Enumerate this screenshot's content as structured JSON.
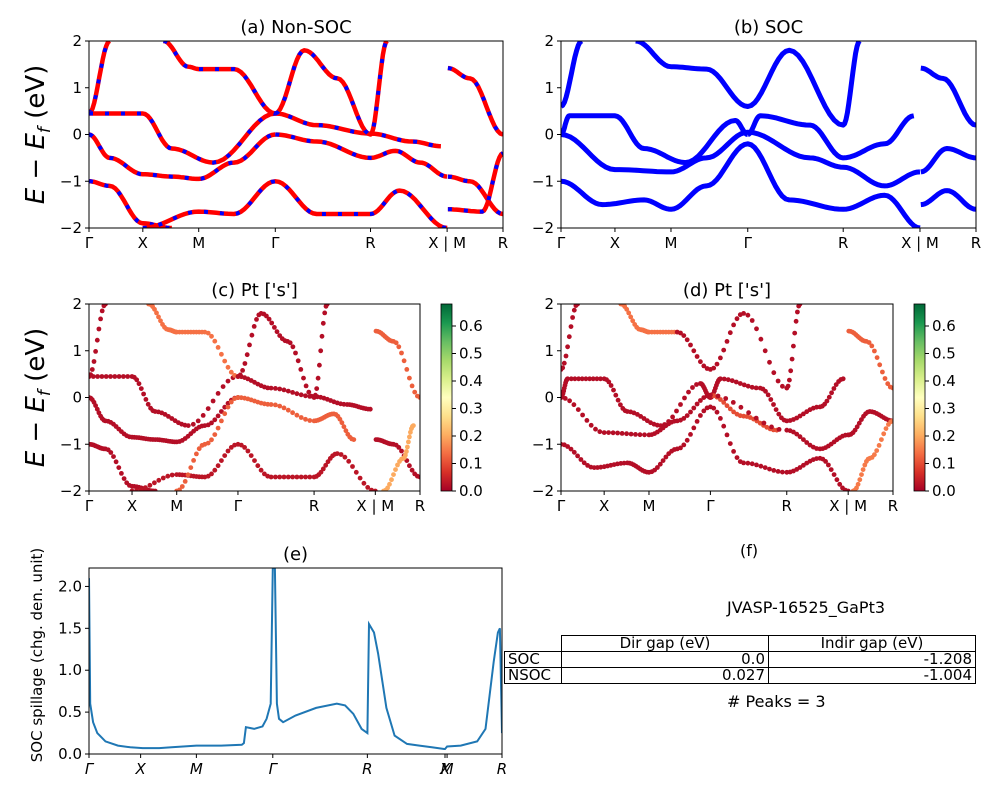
{
  "chart_data": [
    {
      "id": "a",
      "type": "line",
      "title": "(a) Non-SOC",
      "ylabel": "E − E_f (eV)",
      "ylim": [
        -2,
        2
      ],
      "yticks": [
        "2",
        "1",
        "0",
        "−1",
        "−2"
      ],
      "kpoint_labels": [
        "Γ",
        "X",
        "M",
        "Γ",
        "R",
        "X | M",
        "R"
      ],
      "kpoint_positions": [
        0,
        0.13,
        0.265,
        0.45,
        0.68,
        0.865,
        1.0
      ],
      "style": "red solid with blue dashed overlay",
      "colors": {
        "primary": "#ff0000",
        "overlay": "#0000ff"
      },
      "series": [
        {
          "name": "band1",
          "x": [
            0,
            0.05
          ],
          "y": [
            0.45,
            2.0
          ]
        },
        {
          "name": "band2",
          "x": [
            0,
            0.13,
            0.2,
            0.3,
            0.45,
            0.55,
            0.68,
            0.78,
            0.85
          ],
          "y": [
            0.45,
            0.45,
            -0.3,
            -0.6,
            0.45,
            0.2,
            0.02,
            -0.15,
            -0.25
          ]
        },
        {
          "name": "band3",
          "x": [
            0,
            0.05,
            0.13,
            0.2,
            0.265,
            0.35,
            0.45
          ],
          "y": [
            0,
            -0.5,
            -0.85,
            -0.9,
            -0.95,
            -0.6,
            0.0
          ]
        },
        {
          "name": "band4",
          "x": [
            0.45,
            0.55,
            0.68,
            0.74,
            0.8,
            0.865
          ],
          "y": [
            0.0,
            -0.15,
            -0.5,
            -0.35,
            -0.6,
            -0.9
          ]
        },
        {
          "name": "band5",
          "x": [
            0.18,
            0.24,
            0.265,
            0.35,
            0.45
          ],
          "y": [
            2.0,
            1.45,
            1.4,
            1.4,
            0.45
          ]
        },
        {
          "name": "band6",
          "x": [
            0.45,
            0.52,
            0.6,
            0.68,
            0.72
          ],
          "y": [
            0.45,
            1.8,
            1.2,
            0.0,
            2.0
          ]
        },
        {
          "name": "band7",
          "x": [
            0,
            0.05,
            0.13,
            0.2
          ],
          "y": [
            -1.0,
            -1.1,
            -1.9,
            -2.0
          ]
        },
        {
          "name": "band8",
          "x": [
            0.13,
            0.265,
            0.35,
            0.45,
            0.55,
            0.68,
            0.75,
            0.865
          ],
          "y": [
            -2.0,
            -1.65,
            -1.7,
            -1.0,
            -1.7,
            -1.7,
            -1.2,
            -2.0
          ]
        },
        {
          "name": "band9",
          "x": [
            0.867,
            0.92,
            1.0
          ],
          "y": [
            1.42,
            1.2,
            0.0
          ]
        },
        {
          "name": "band10",
          "x": [
            0.867,
            0.92,
            1.0
          ],
          "y": [
            -0.9,
            -1.0,
            -1.7
          ]
        },
        {
          "name": "band11",
          "x": [
            0.867,
            0.95,
            1.0
          ],
          "y": [
            -1.6,
            -1.65,
            -0.4
          ]
        }
      ]
    },
    {
      "id": "b",
      "type": "line",
      "title": "(b) SOC",
      "ylim": [
        -2,
        2
      ],
      "yticks": [
        "2",
        "1",
        "0",
        "−1",
        "−2"
      ],
      "kpoint_labels": [
        "Γ",
        "X",
        "M",
        "Γ",
        "R",
        "X | M",
        "R"
      ],
      "kpoint_positions": [
        0,
        0.13,
        0.265,
        0.45,
        0.68,
        0.865,
        1.0
      ],
      "colors": {
        "primary": "#0000ff"
      },
      "series": [
        {
          "name": "band1",
          "x": [
            0,
            0.05
          ],
          "y": [
            0.6,
            2.0
          ]
        },
        {
          "name": "band2",
          "x": [
            0,
            0.02,
            0.13,
            0.2,
            0.3,
            0.42,
            0.45
          ],
          "y": [
            0.0,
            0.4,
            0.4,
            -0.3,
            -0.6,
            0.3,
            0.0
          ]
        },
        {
          "name": "band3",
          "x": [
            0.45,
            0.48,
            0.6,
            0.68,
            0.78,
            0.85
          ],
          "y": [
            0.0,
            0.4,
            0.2,
            -0.5,
            -0.2,
            0.4
          ]
        },
        {
          "name": "band4",
          "x": [
            0,
            0.13,
            0.265,
            0.35,
            0.45,
            0.6,
            0.68,
            0.78,
            0.865
          ],
          "y": [
            0.0,
            -0.75,
            -0.8,
            -0.5,
            0.05,
            -0.5,
            -0.7,
            -1.1,
            -0.8
          ]
        },
        {
          "name": "band5",
          "x": [
            0.18,
            0.265,
            0.35,
            0.45,
            0.55,
            0.68,
            0.72
          ],
          "y": [
            2.0,
            1.45,
            1.4,
            0.6,
            1.8,
            0.2,
            2.0
          ]
        },
        {
          "name": "band6",
          "x": [
            0,
            0.1,
            0.2,
            0.265,
            0.35,
            0.45,
            0.55,
            0.68,
            0.78,
            0.865
          ],
          "y": [
            -1.0,
            -1.5,
            -1.4,
            -1.6,
            -1.1,
            -0.2,
            -1.4,
            -1.6,
            -1.3,
            -2.0
          ]
        },
        {
          "name": "band7",
          "x": [
            0.867,
            0.92,
            1.0
          ],
          "y": [
            1.42,
            1.2,
            0.2
          ]
        },
        {
          "name": "band8",
          "x": [
            0.867,
            0.93,
            1.0
          ],
          "y": [
            -0.8,
            -0.3,
            -0.5
          ]
        },
        {
          "name": "band9",
          "x": [
            0.867,
            0.93,
            1.0
          ],
          "y": [
            -1.5,
            -1.2,
            -1.6
          ]
        }
      ]
    },
    {
      "id": "c",
      "type": "scatter",
      "title": "(c)  Pt ['s']",
      "ylim": [
        -2,
        2
      ],
      "yticks": [
        "2",
        "1",
        "0",
        "−1",
        "−2"
      ],
      "kpoint_labels": [
        "Γ",
        "X",
        "M",
        "Γ",
        "R",
        "X | M",
        "R"
      ],
      "kpoint_positions": [
        0,
        0.13,
        0.265,
        0.45,
        0.68,
        0.865,
        1.0
      ],
      "colorbar": {
        "cmap": "RdYlGn",
        "range": [
          0.0,
          0.68
        ],
        "ticks": [
          "0.0",
          "0.1",
          "0.2",
          "0.3",
          "0.4",
          "0.5",
          "0.6"
        ]
      },
      "series": [
        {
          "name": "band1",
          "w": 0.02,
          "x": [
            0,
            0.05
          ],
          "y": [
            0.45,
            2.0
          ]
        },
        {
          "name": "band2",
          "w": 0.02,
          "x": [
            0,
            0.13,
            0.2,
            0.3,
            0.45,
            0.55,
            0.68,
            0.78,
            0.85
          ],
          "y": [
            0.45,
            0.45,
            -0.3,
            -0.6,
            0.45,
            0.2,
            0.02,
            -0.15,
            -0.25
          ]
        },
        {
          "name": "band3",
          "w": 0.02,
          "x": [
            0,
            0.05,
            0.13,
            0.2,
            0.265,
            0.35,
            0.45
          ],
          "y": [
            0,
            -0.5,
            -0.85,
            -0.9,
            -0.95,
            -0.6,
            0.0
          ]
        },
        {
          "name": "band4",
          "w": 0.12,
          "x": [
            0.45,
            0.55,
            0.68,
            0.74,
            0.8
          ],
          "y": [
            0.0,
            -0.15,
            -0.5,
            -0.35,
            -0.9
          ]
        },
        {
          "name": "band5",
          "w": 0.14,
          "x": [
            0.18,
            0.24,
            0.265,
            0.35,
            0.45
          ],
          "y": [
            2.0,
            1.45,
            1.4,
            1.4,
            0.45
          ]
        },
        {
          "name": "band6",
          "w": 0.02,
          "x": [
            0.45,
            0.52,
            0.6,
            0.68,
            0.72
          ],
          "y": [
            0.45,
            1.8,
            1.2,
            0.0,
            2.0
          ]
        },
        {
          "name": "band7",
          "w": 0.02,
          "x": [
            0,
            0.05,
            0.13,
            0.2
          ],
          "y": [
            -1.0,
            -1.1,
            -1.9,
            -2.0
          ]
        },
        {
          "name": "band8",
          "w": 0.03,
          "x": [
            0.13,
            0.265,
            0.35,
            0.45,
            0.55,
            0.68,
            0.75,
            0.865
          ],
          "y": [
            -2.0,
            -1.65,
            -1.7,
            -1.0,
            -1.7,
            -1.7,
            -1.2,
            -2.0
          ]
        },
        {
          "name": "band9",
          "w": 0.12,
          "x": [
            0.867,
            0.92,
            1.0
          ],
          "y": [
            1.42,
            1.2,
            0.0
          ]
        },
        {
          "name": "band10",
          "w": 0.02,
          "x": [
            0.867,
            0.92,
            1.0
          ],
          "y": [
            -0.9,
            -1.0,
            -1.7
          ]
        },
        {
          "name": "band11",
          "w": 0.2,
          "x": [
            0.89,
            0.95,
            0.98
          ],
          "y": [
            -2.0,
            -1.3,
            -0.6
          ]
        },
        {
          "name": "band12",
          "w": 0.12,
          "x": [
            0.265,
            0.35,
            0.45
          ],
          "y": [
            -2.0,
            -1.0,
            0.0
          ]
        }
      ]
    },
    {
      "id": "d",
      "type": "scatter",
      "title": "(d) Pt ['s']",
      "ylim": [
        -2,
        2
      ],
      "yticks": [
        "2",
        "1",
        "0",
        "−1",
        "−2"
      ],
      "kpoint_labels": [
        "Γ",
        "X",
        "M",
        "Γ",
        "R",
        "X | M",
        "R"
      ],
      "kpoint_positions": [
        0,
        0.13,
        0.265,
        0.45,
        0.68,
        0.865,
        1.0
      ],
      "colorbar": {
        "cmap": "RdYlGn",
        "range": [
          0.0,
          0.68
        ],
        "ticks": [
          "0.0",
          "0.1",
          "0.2",
          "0.3",
          "0.4",
          "0.5",
          "0.6"
        ]
      },
      "series": [
        {
          "name": "band1",
          "w": 0.02,
          "x": [
            0,
            0.05
          ],
          "y": [
            0.6,
            2.0
          ]
        },
        {
          "name": "band2",
          "w": 0.02,
          "x": [
            0,
            0.02,
            0.13,
            0.2,
            0.3,
            0.42,
            0.45
          ],
          "y": [
            0.0,
            0.4,
            0.4,
            -0.3,
            -0.6,
            0.3,
            0.0
          ]
        },
        {
          "name": "band3",
          "w": 0.02,
          "x": [
            0.45,
            0.48,
            0.6,
            0.68,
            0.78,
            0.85
          ],
          "y": [
            0.0,
            0.4,
            0.2,
            -0.5,
            -0.2,
            0.4
          ]
        },
        {
          "name": "band4",
          "w": 0.1,
          "x": [
            0.45,
            0.55,
            0.65
          ],
          "y": [
            0.05,
            -0.4,
            -0.7
          ]
        },
        {
          "name": "band4b",
          "w": 0.02,
          "x": [
            0,
            0.13,
            0.265,
            0.35,
            0.45,
            0.68,
            0.78,
            0.865
          ],
          "y": [
            0.0,
            -0.75,
            -0.8,
            -0.5,
            0.05,
            -0.7,
            -1.1,
            -0.8
          ]
        },
        {
          "name": "band5",
          "w": 0.14,
          "x": [
            0.18,
            0.24,
            0.265,
            0.35
          ],
          "y": [
            2.0,
            1.45,
            1.4,
            1.4
          ]
        },
        {
          "name": "band5b",
          "w": 0.02,
          "x": [
            0.35,
            0.45,
            0.55,
            0.68,
            0.72
          ],
          "y": [
            1.4,
            0.6,
            1.8,
            0.2,
            2.0
          ]
        },
        {
          "name": "band6",
          "w": 0.02,
          "x": [
            0,
            0.1,
            0.2,
            0.265,
            0.35,
            0.45,
            0.55,
            0.68,
            0.78,
            0.865
          ],
          "y": [
            -1.0,
            -1.5,
            -1.4,
            -1.6,
            -1.1,
            -0.2,
            -1.4,
            -1.6,
            -1.3,
            -2.0
          ]
        },
        {
          "name": "band7",
          "w": 0.12,
          "x": [
            0.867,
            0.92,
            1.0
          ],
          "y": [
            1.42,
            1.2,
            0.2
          ]
        },
        {
          "name": "band8",
          "w": 0.02,
          "x": [
            0.867,
            0.93,
            1.0
          ],
          "y": [
            -0.8,
            -0.3,
            -0.5
          ]
        },
        {
          "name": "band9",
          "w": 0.15,
          "x": [
            0.88,
            0.93,
            1.0
          ],
          "y": [
            -2.0,
            -1.3,
            -0.5
          ]
        }
      ]
    },
    {
      "id": "e",
      "type": "line",
      "title": "(e)",
      "ylabel": "SOC spillage (chg. den. unit)",
      "ylim": [
        0.0,
        2.22
      ],
      "yticks": [
        "0.0",
        "0.5",
        "1.0",
        "1.5",
        "2.0"
      ],
      "kpoint_labels": [
        "Γ",
        "X",
        "M",
        "Γ",
        "R",
        "X",
        "M",
        "R"
      ],
      "kpoint_positions": [
        0,
        0.125,
        0.26,
        0.445,
        0.674,
        0.862,
        0.867,
        1.0
      ],
      "color": "#1f77b4",
      "x": [
        0,
        0.003,
        0.01,
        0.02,
        0.04,
        0.07,
        0.1,
        0.13,
        0.17,
        0.2,
        0.26,
        0.32,
        0.37,
        0.375,
        0.38,
        0.39,
        0.4,
        0.42,
        0.43,
        0.44,
        0.445,
        0.45,
        0.455,
        0.46,
        0.47,
        0.5,
        0.55,
        0.6,
        0.62,
        0.64,
        0.66,
        0.674,
        0.678,
        0.69,
        0.7,
        0.72,
        0.74,
        0.77,
        0.8,
        0.83,
        0.86,
        0.862,
        0.867,
        0.9,
        0.94,
        0.96,
        0.98,
        0.99,
        0.995,
        1.0
      ],
      "y": [
        2.1,
        0.6,
        0.38,
        0.25,
        0.15,
        0.1,
        0.08,
        0.07,
        0.07,
        0.08,
        0.1,
        0.1,
        0.11,
        0.13,
        0.32,
        0.31,
        0.3,
        0.33,
        0.42,
        0.6,
        2.22,
        2.22,
        0.6,
        0.42,
        0.38,
        0.46,
        0.55,
        0.6,
        0.58,
        0.48,
        0.3,
        0.25,
        1.55,
        1.45,
        1.2,
        0.55,
        0.22,
        0.12,
        0.1,
        0.08,
        0.06,
        0.06,
        0.09,
        0.1,
        0.15,
        0.3,
        1.1,
        1.45,
        1.5,
        0.25
      ]
    }
  ],
  "panel_f": {
    "title": "(f)",
    "material": "JVASP-16525_GaPt3",
    "table": {
      "headers": [
        "Dir gap (eV)",
        "Indir gap (eV)"
      ],
      "rows": [
        {
          "label": "SOC",
          "dir": "0.0",
          "indir": "-1.208"
        },
        {
          "label": "NSOC",
          "dir": "0.027",
          "indir": "-1.004"
        }
      ]
    },
    "peaks": "# Peaks = 3"
  }
}
